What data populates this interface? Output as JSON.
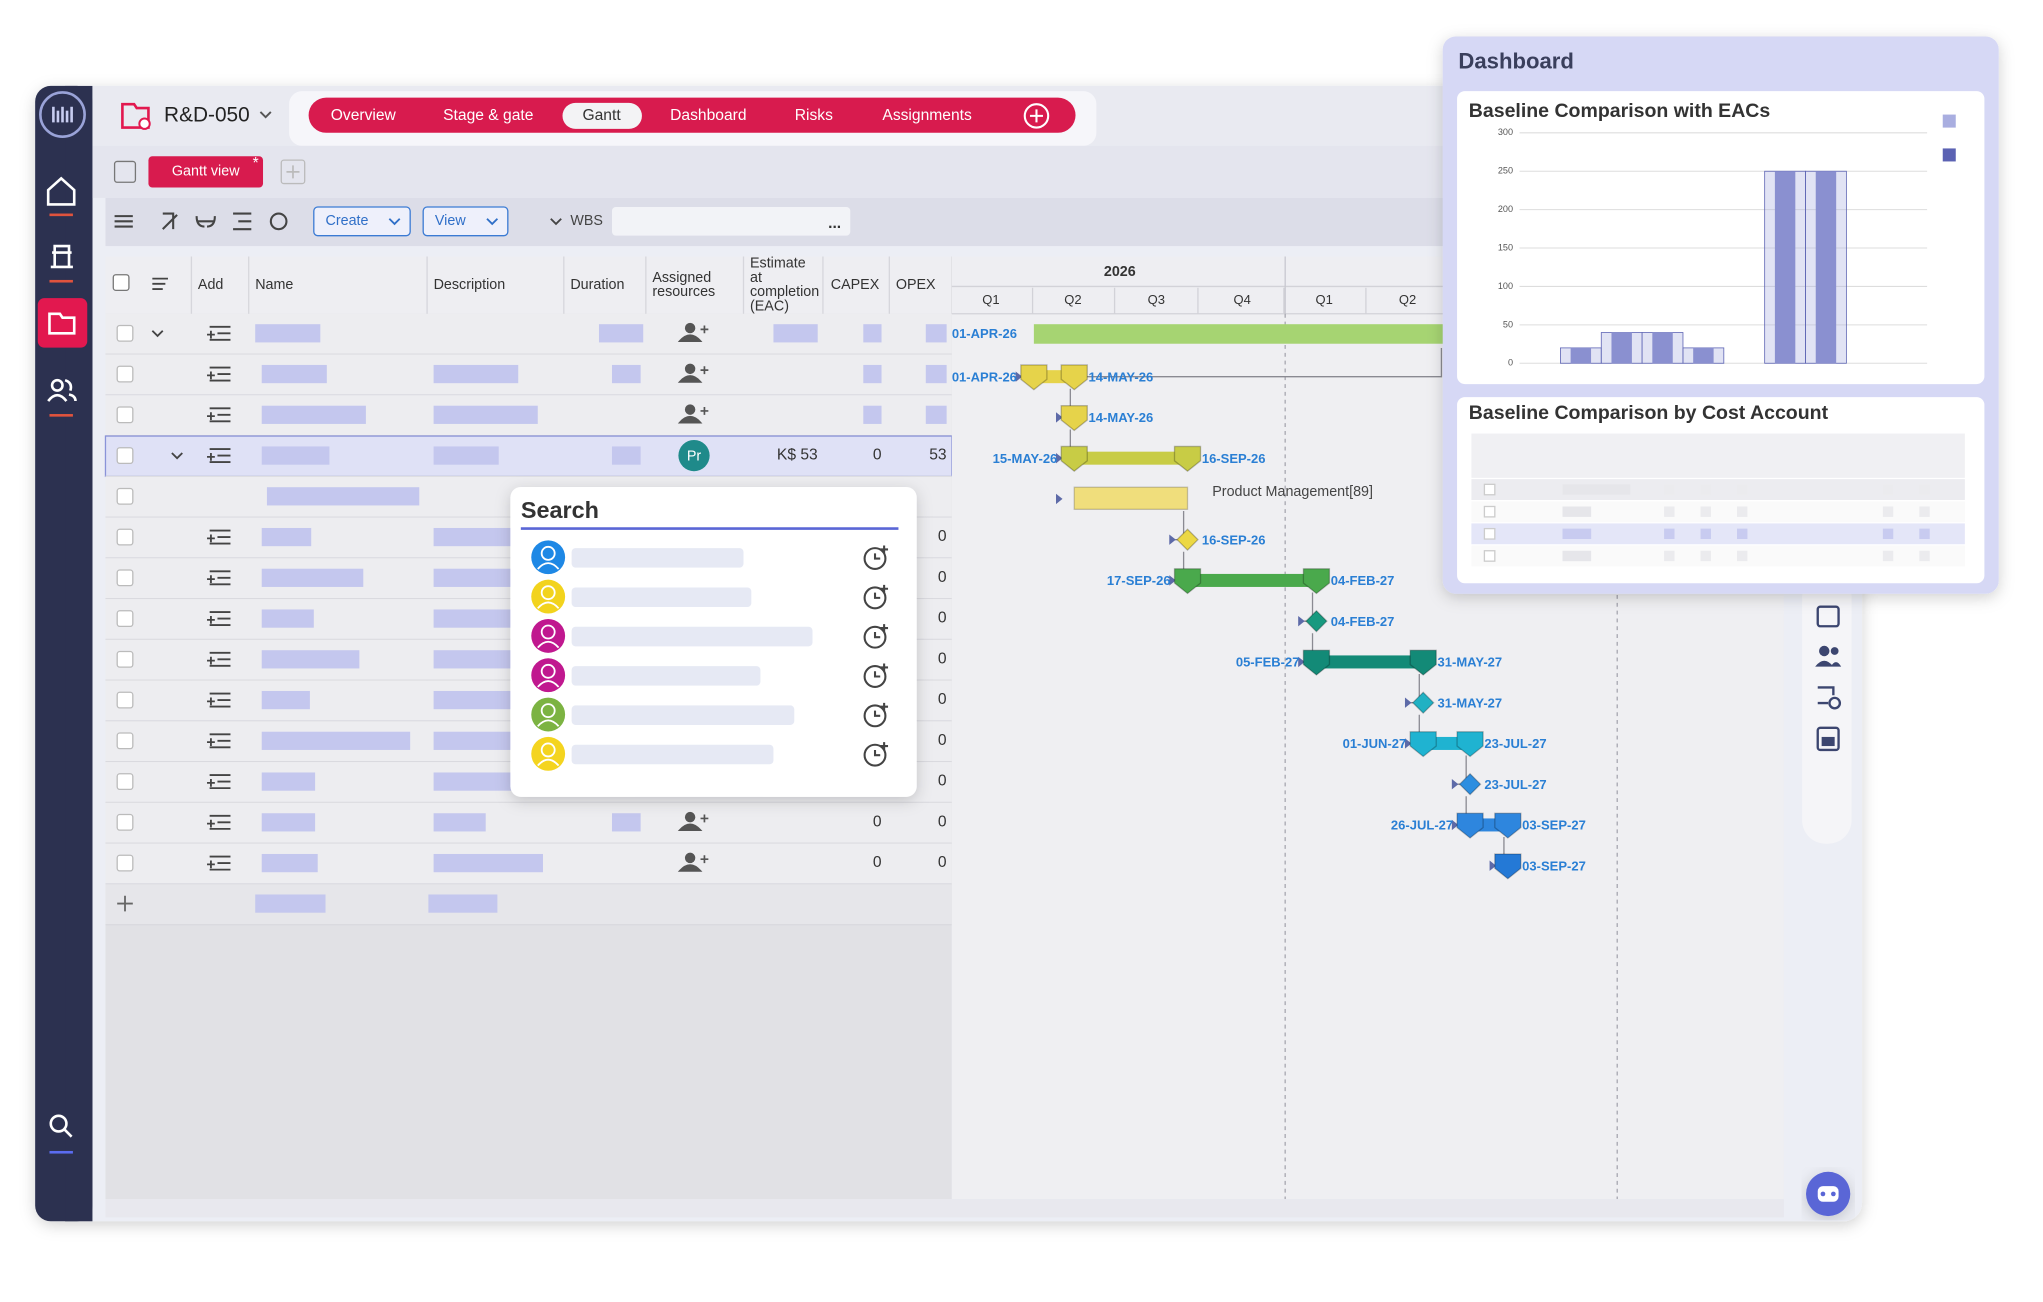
{
  "project": "R&D-050",
  "tabs": [
    "Overview",
    "Stage & gate",
    "Gantt",
    "Dashboard",
    "Risks",
    "Assignments"
  ],
  "active_tab_index": 2,
  "view_tab": "Gantt view",
  "toolbar": {
    "create": "Create",
    "view": "View",
    "wbs": "WBS",
    "more": "..."
  },
  "table": {
    "columns": [
      [
        "Add"
      ],
      [
        "Name"
      ],
      [
        "Description"
      ],
      [
        "Duration"
      ],
      [
        "Assigned",
        "resources"
      ],
      [
        "Estimate",
        "at",
        "completion",
        "(EAC)"
      ],
      [
        "CAPEX"
      ],
      [
        "OPEX"
      ]
    ],
    "rows": [
      null,
      null,
      null,
      {
        "resource": "Pr",
        "eac": "K$ 53",
        "capex": 0,
        "opex": 53
      },
      null,
      {
        "opex": 0
      },
      {
        "opex": 0
      },
      {
        "opex": 0
      },
      {
        "opex": 0
      },
      {
        "opex": 0
      },
      {
        "opex": 0
      },
      {
        "opex": 0
      },
      {
        "capex": 0,
        "opex": 0
      },
      {
        "capex": 0,
        "opex": 0
      }
    ]
  },
  "timeline": {
    "year": "2026",
    "quarters": [
      "Q1",
      "Q2",
      "Q3",
      "Q4",
      "Q1",
      "Q2"
    ]
  },
  "tasks": [
    {
      "start": "01-APR-26"
    },
    {
      "start": "01-APR-26",
      "end": "14-MAY-26"
    },
    {
      "end": "14-MAY-26"
    },
    {
      "start": "15-MAY-26",
      "end": "16-SEP-26"
    },
    {
      "label": "Product Management[89]"
    },
    {
      "end": "16-SEP-26"
    },
    {
      "start": "17-SEP-26",
      "end": "04-FEB-27"
    },
    {
      "end": "04-FEB-27"
    },
    {
      "start": "05-FEB-27",
      "end": "31-MAY-27"
    },
    {
      "end": "31-MAY-27"
    },
    {
      "start": "01-JUN-27",
      "end": "23-JUL-27"
    },
    {
      "end": "23-JUL-27"
    },
    {
      "start": "26-JUL-27",
      "end": "03-SEP-27"
    },
    {
      "end": "03-SEP-27"
    }
  ],
  "search": {
    "title": "Search"
  },
  "dashboard": {
    "title": "Dashboard",
    "table_title": "Baseline Comparison by Cost Account"
  },
  "chart_data": {
    "type": "bar",
    "title": "Baseline Comparison with EACs",
    "categories": [
      null,
      null,
      null,
      null,
      null,
      null,
      null,
      null
    ],
    "series": [
      {
        "color": "#a9aee0",
        "values": [
          null,
          20,
          40,
          40,
          20,
          null,
          250,
          250
        ]
      },
      {
        "color": "#8a90d0",
        "values": [
          null,
          20,
          40,
          40,
          20,
          null,
          250,
          250
        ]
      }
    ],
    "ylim": [
      0,
      300
    ],
    "yticks": [
      0,
      50,
      100,
      150,
      200,
      250,
      300
    ],
    "grid": true
  }
}
